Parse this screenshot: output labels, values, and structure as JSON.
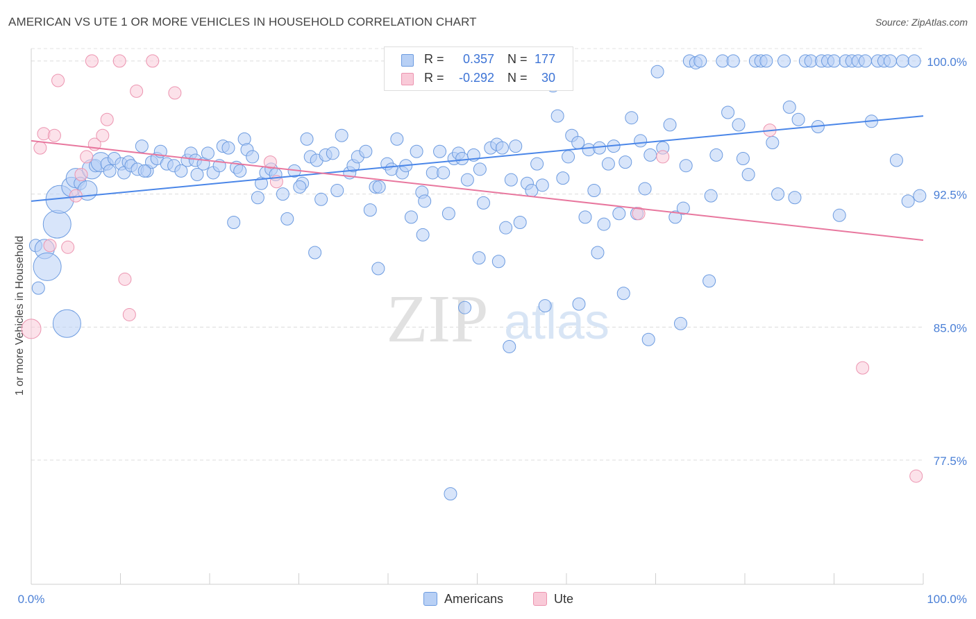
{
  "header": {
    "title": "AMERICAN VS UTE 1 OR MORE VEHICLES IN HOUSEHOLD CORRELATION CHART",
    "source": "Source: ZipAtlas.com"
  },
  "watermark": {
    "zip": "ZIP",
    "atlas": "atlas"
  },
  "stats_box": {
    "rows": [
      {
        "series": "Americans",
        "r_label": "R =",
        "r_value": "0.357",
        "n_label": "N =",
        "n_value": "177",
        "color": "#4a86e8"
      },
      {
        "series": "Ute",
        "r_label": "R =",
        "r_value": "-0.292",
        "n_label": "N =",
        "n_value": "30",
        "color": "#e8779e"
      }
    ]
  },
  "legend": {
    "items": [
      {
        "label": "Americans",
        "fill": "#b8d0f5",
        "stroke": "#6c9be0"
      },
      {
        "label": "Ute",
        "fill": "#f9cad8",
        "stroke": "#ec94b0"
      }
    ]
  },
  "chart_data": {
    "type": "scatter",
    "title": "AMERICAN VS UTE 1 OR MORE VEHICLES IN HOUSEHOLD CORRELATION CHART",
    "xlabel": "",
    "ylabel": "1 or more Vehicles in Household",
    "xlim": [
      0,
      100
    ],
    "ylim": [
      70.5,
      100.7
    ],
    "x_tick_labels": [
      "0.0%",
      "100.0%"
    ],
    "y_ticks": [
      77.5,
      85.0,
      92.5,
      100.0
    ],
    "y_tick_labels": [
      "77.5%",
      "85.0%",
      "92.5%",
      "100.0%"
    ],
    "grid": true,
    "legend_position": "bottom-center",
    "series": [
      {
        "name": "Americans",
        "color": "#4a86e8",
        "fill": "#b8d0f5",
        "r": 0.357,
        "n": 177,
        "trend": {
          "x": [
            0,
            100
          ],
          "y": [
            92.1,
            96.9
          ]
        },
        "points": [
          [
            0.5,
            89.6,
            1
          ],
          [
            0.8,
            87.2,
            1
          ],
          [
            1.5,
            89.4,
            2
          ],
          [
            1.8,
            88.4,
            3
          ],
          [
            2.9,
            90.8,
            3
          ],
          [
            3.2,
            92.2,
            3
          ],
          [
            4,
            85.2,
            3
          ],
          [
            4.5,
            92.9,
            2
          ],
          [
            5,
            93.4,
            2
          ],
          [
            5.5,
            93.1,
            1
          ],
          [
            6.3,
            92.7,
            2
          ],
          [
            6.8,
            93.9,
            2
          ],
          [
            7.2,
            94.1,
            1
          ],
          [
            7.8,
            94.3,
            2
          ],
          [
            8.5,
            94.2,
            1
          ],
          [
            8.8,
            93.8,
            1
          ],
          [
            9.3,
            94.5,
            1
          ],
          [
            10.1,
            94.2,
            1
          ],
          [
            10.4,
            93.7,
            1
          ],
          [
            10.9,
            94.3,
            1
          ],
          [
            11.2,
            94.1,
            1
          ],
          [
            11.9,
            93.9,
            1
          ],
          [
            12.4,
            95.2,
            1
          ],
          [
            13,
            93.8,
            1
          ],
          [
            13.5,
            94.3,
            1
          ],
          [
            14.1,
            94.5,
            1
          ],
          [
            14.5,
            94.9,
            1
          ],
          [
            15.2,
            94.2,
            1
          ],
          [
            16,
            94.1,
            1
          ],
          [
            16.8,
            93.8,
            1
          ],
          [
            17.5,
            94.4,
            1
          ],
          [
            17.9,
            94.8,
            1
          ],
          [
            18.4,
            94.4,
            1
          ],
          [
            19.3,
            94.2,
            1
          ],
          [
            19.8,
            94.8,
            1
          ],
          [
            20.4,
            93.7,
            1
          ],
          [
            21.1,
            94.1,
            1
          ],
          [
            21.5,
            95.2,
            1
          ],
          [
            22.1,
            95.1,
            1
          ],
          [
            23,
            94,
            1
          ],
          [
            23.4,
            93.8,
            1
          ],
          [
            23.9,
            95.6,
            1
          ],
          [
            24.2,
            95,
            1
          ],
          [
            24.8,
            94.6,
            1
          ],
          [
            25.4,
            92.3,
            1
          ],
          [
            25.8,
            93.1,
            1
          ],
          [
            26.3,
            93.7,
            1
          ],
          [
            26.9,
            93.9,
            1
          ],
          [
            27.4,
            93.6,
            1
          ],
          [
            28.2,
            92.5,
            1
          ],
          [
            28.7,
            91.1,
            1
          ],
          [
            29.5,
            93.8,
            1
          ],
          [
            30.4,
            93.1,
            1
          ],
          [
            30.9,
            95.6,
            1
          ],
          [
            31.3,
            94.6,
            1
          ],
          [
            32,
            94.4,
            1
          ],
          [
            32.5,
            92.2,
            1
          ],
          [
            33,
            94.7,
            1
          ],
          [
            33.8,
            94.8,
            1
          ],
          [
            34.3,
            92.7,
            1
          ],
          [
            34.8,
            95.8,
            1
          ],
          [
            35.7,
            93.7,
            1
          ],
          [
            36.1,
            94.1,
            1
          ],
          [
            36.6,
            94.6,
            1
          ],
          [
            37.5,
            94.9,
            1
          ],
          [
            38,
            91.6,
            1
          ],
          [
            38.6,
            92.9,
            1
          ],
          [
            39,
            92.9,
            1
          ],
          [
            39.9,
            94.2,
            1
          ],
          [
            40.4,
            93.9,
            1
          ],
          [
            41,
            95.6,
            1
          ],
          [
            41.6,
            93.7,
            1
          ],
          [
            42,
            94.1,
            1
          ],
          [
            42.6,
            91.2,
            1
          ],
          [
            43.2,
            94.9,
            1
          ],
          [
            43.8,
            92.6,
            1
          ],
          [
            44.1,
            92.1,
            1
          ],
          [
            45,
            93.7,
            1
          ],
          [
            45.8,
            94.9,
            1
          ],
          [
            46.2,
            93.7,
            1
          ],
          [
            46.8,
            91.4,
            1
          ],
          [
            47.4,
            94.5,
            1
          ],
          [
            47.9,
            94.8,
            1
          ],
          [
            48.3,
            94.5,
            1
          ],
          [
            48.9,
            93.3,
            1
          ],
          [
            49.6,
            94.7,
            1
          ],
          [
            50.3,
            93.9,
            1
          ],
          [
            50.7,
            92,
            1
          ],
          [
            51.5,
            95.1,
            1
          ],
          [
            52.2,
            95.3,
            1
          ],
          [
            52.8,
            95.1,
            1
          ],
          [
            53.2,
            90.6,
            1
          ],
          [
            53.8,
            93.3,
            1
          ],
          [
            54.3,
            95.2,
            1
          ],
          [
            54.8,
            90.9,
            1
          ],
          [
            55.6,
            93.1,
            1
          ],
          [
            56.1,
            92.7,
            1
          ],
          [
            56.7,
            94.2,
            1
          ],
          [
            57.3,
            93,
            1
          ],
          [
            58,
            99.6,
            1
          ],
          [
            58.5,
            98.6,
            1
          ],
          [
            59,
            96.9,
            1
          ],
          [
            59.6,
            93.4,
            1
          ],
          [
            60.2,
            94.6,
            1
          ],
          [
            60.6,
            95.8,
            1
          ],
          [
            61.3,
            95.4,
            1
          ],
          [
            62.1,
            91.2,
            1
          ],
          [
            62.5,
            95,
            1
          ],
          [
            63.1,
            92.7,
            1
          ],
          [
            63.7,
            95.1,
            1
          ],
          [
            64.2,
            90.8,
            1
          ],
          [
            64.7,
            94.2,
            1
          ],
          [
            65.3,
            95.2,
            1
          ],
          [
            65.9,
            91.4,
            1
          ],
          [
            66.6,
            94.3,
            1
          ],
          [
            67.3,
            96.8,
            1
          ],
          [
            67.9,
            91.4,
            1
          ],
          [
            68.3,
            95.5,
            1
          ],
          [
            68.8,
            92.8,
            1
          ],
          [
            69.4,
            94.7,
            1
          ],
          [
            70.2,
            99.4,
            1
          ],
          [
            70.8,
            95.1,
            1
          ],
          [
            71.6,
            96.4,
            1
          ],
          [
            72.2,
            91.2,
            1
          ],
          [
            72.8,
            85.2,
            1
          ],
          [
            73.4,
            94.1,
            1
          ],
          [
            73.8,
            100,
            1
          ],
          [
            74.5,
            99.9,
            1
          ],
          [
            75,
            100,
            1
          ],
          [
            76.2,
            92.4,
            1
          ],
          [
            76.8,
            94.7,
            1
          ],
          [
            77.5,
            100,
            1
          ],
          [
            78.1,
            97.1,
            1
          ],
          [
            78.7,
            100,
            1
          ],
          [
            79.3,
            96.4,
            1
          ],
          [
            79.8,
            94.5,
            1
          ],
          [
            80.4,
            93.6,
            1
          ],
          [
            81.2,
            100,
            1
          ],
          [
            81.8,
            100,
            1
          ],
          [
            82.4,
            100,
            1
          ],
          [
            83.1,
            95.4,
            1
          ],
          [
            83.7,
            92.5,
            1
          ],
          [
            84.4,
            100,
            1
          ],
          [
            85,
            97.4,
            1
          ],
          [
            85.6,
            92.3,
            1
          ],
          [
            86,
            96.7,
            1
          ],
          [
            86.8,
            100,
            1
          ],
          [
            87.4,
            100,
            1
          ],
          [
            88.2,
            96.3,
            1
          ],
          [
            88.6,
            100,
            1
          ],
          [
            89.3,
            100,
            1
          ],
          [
            90,
            100,
            1
          ],
          [
            90.6,
            91.3,
            1
          ],
          [
            91.3,
            100,
            1
          ],
          [
            92,
            100,
            1
          ],
          [
            92.7,
            100,
            1
          ],
          [
            93.5,
            100,
            1
          ],
          [
            94.2,
            96.6,
            1
          ],
          [
            94.9,
            100,
            1
          ],
          [
            95.6,
            100,
            1
          ],
          [
            96.3,
            100,
            1
          ],
          [
            97,
            94.4,
            1
          ],
          [
            97.7,
            100,
            1
          ],
          [
            98.3,
            92.1,
            1
          ],
          [
            99,
            100,
            1
          ],
          [
            99.6,
            92.4,
            1
          ],
          [
            12.7,
            93.8,
            1
          ],
          [
            18.6,
            93.6,
            1
          ],
          [
            22.7,
            90.9,
            1
          ],
          [
            30.1,
            92.9,
            1
          ],
          [
            31.8,
            89.2,
            1
          ],
          [
            38.9,
            88.3,
            1
          ],
          [
            43.9,
            90.2,
            1
          ],
          [
            47,
            75.6,
            1
          ],
          [
            48.6,
            86.1,
            1
          ],
          [
            50.2,
            88.9,
            1
          ],
          [
            52.4,
            88.7,
            1
          ],
          [
            53.6,
            83.9,
            1
          ],
          [
            57.6,
            86.2,
            1
          ],
          [
            61.4,
            86.3,
            1
          ],
          [
            63.5,
            89.2,
            1
          ],
          [
            66.4,
            86.9,
            1
          ],
          [
            69.2,
            84.3,
            1
          ],
          [
            73.1,
            91.7,
            1
          ],
          [
            76,
            87.6,
            1
          ]
        ]
      },
      {
        "name": "Ute",
        "color": "#e8779e",
        "fill": "#f9cad8",
        "r": -0.292,
        "n": 30,
        "trend": {
          "x": [
            0,
            100
          ],
          "y": [
            95.5,
            89.9
          ]
        },
        "points": [
          [
            0,
            84.9,
            2
          ],
          [
            1,
            95.1,
            1
          ],
          [
            1.4,
            95.9,
            1
          ],
          [
            2.1,
            89.6,
            1
          ],
          [
            2.6,
            95.8,
            1
          ],
          [
            3,
            98.9,
            1
          ],
          [
            4.1,
            89.5,
            1
          ],
          [
            5,
            92.4,
            1
          ],
          [
            5.6,
            93.6,
            1
          ],
          [
            6.2,
            94.6,
            1
          ],
          [
            6.8,
            100,
            1
          ],
          [
            7.1,
            95.3,
            1
          ],
          [
            8,
            95.8,
            1
          ],
          [
            8.5,
            96.7,
            1
          ],
          [
            9.9,
            100,
            1
          ],
          [
            10.5,
            87.7,
            1
          ],
          [
            11,
            85.7,
            1
          ],
          [
            11.8,
            98.3,
            1
          ],
          [
            13.6,
            100,
            1
          ],
          [
            16.1,
            98.2,
            1
          ],
          [
            26.8,
            94.3,
            1
          ],
          [
            27.5,
            93.2,
            1
          ],
          [
            46.5,
            100,
            1
          ],
          [
            68.1,
            91.4,
            1
          ],
          [
            70.8,
            94.6,
            1
          ],
          [
            82.8,
            96.1,
            1
          ],
          [
            93.2,
            82.7,
            1
          ],
          [
            99.2,
            76.6,
            1
          ]
        ]
      }
    ]
  }
}
